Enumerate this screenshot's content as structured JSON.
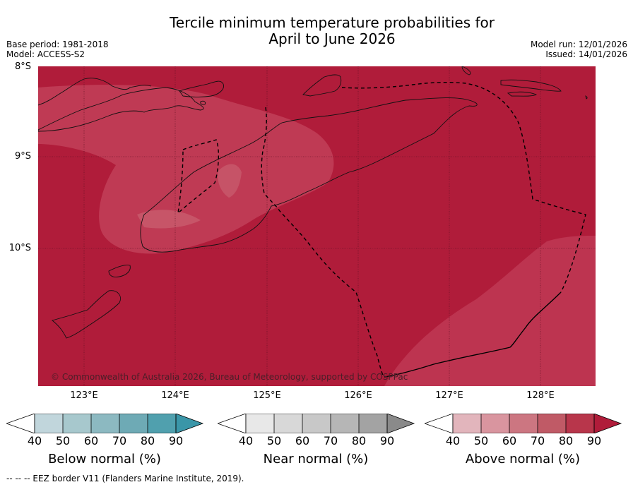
{
  "title": {
    "line1": "Tercile minimum temperature probabilities for",
    "line2": "April to June 2026"
  },
  "meta_left": {
    "base_period": "Base period: 1981-2018",
    "model": "Model: ACCESS-S2"
  },
  "meta_right": {
    "model_run": "Model run: 12/01/2026",
    "issued": "Issued: 14/01/2026"
  },
  "map": {
    "lat_labels": [
      "8°S",
      "9°S",
      "10°S"
    ],
    "lon_labels": [
      "123°E",
      "124°E",
      "125°E",
      "126°E",
      "127°E",
      "128°E"
    ],
    "fill_colors": {
      "above_90": "#b01c3a",
      "above_80": "#bd3450",
      "above_70": "#c3495f",
      "sea_ocean": "#b01c3a"
    },
    "copyright": "© Commonwealth of Australia 2026, Bureau of Meteorology, supported by COSPPac"
  },
  "legend": {
    "ticks": [
      "40",
      "50",
      "60",
      "70",
      "80",
      "90"
    ],
    "below": {
      "label": "Below normal (%)",
      "colors": [
        "#ffffff",
        "#c1d6dc",
        "#a7c8cd",
        "#8cb9c1",
        "#6eaab5",
        "#50a0ae",
        "#3a96a8"
      ]
    },
    "near": {
      "label": "Near normal (%)",
      "colors": [
        "#ffffff",
        "#e8e8e8",
        "#d8d8d8",
        "#c8c8c8",
        "#b6b6b6",
        "#a3a3a3",
        "#8a8a8a"
      ]
    },
    "above": {
      "label": "Above normal (%)",
      "colors": [
        "#ffffff",
        "#e2b5bc",
        "#d9959f",
        "#cc7681",
        "#c05a66",
        "#b8364b",
        "#b01c3a"
      ]
    }
  },
  "footer": {
    "eez_note": "--  --  -- EEZ border V11 (Flanders Marine Institute, 2019)."
  }
}
